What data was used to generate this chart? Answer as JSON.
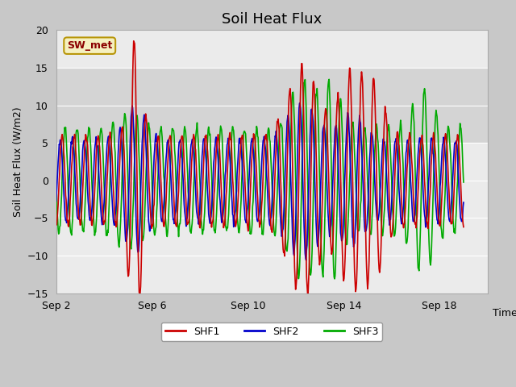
{
  "title": "Soil Heat Flux",
  "ylabel": "Soil Heat Flux (W/m2)",
  "xlabel": "Time",
  "xlim_days": [
    2,
    20
  ],
  "ylim": [
    -15,
    20
  ],
  "yticks": [
    -15,
    -10,
    -5,
    0,
    5,
    10,
    15,
    20
  ],
  "xtick_labels": [
    "Sep 2",
    "Sep 6",
    "Sep 10",
    "Sep 14",
    "Sep 18"
  ],
  "xtick_positions": [
    2,
    6,
    10,
    14,
    18
  ],
  "shaded_band_color": "#e0e0e0",
  "plot_bg_color": "#ebebeb",
  "fig_bg_color": "#c8c8c8",
  "legend_label": "SW_met",
  "legend_box_facecolor": "#f5f0c0",
  "legend_box_edgecolor": "#b8960a",
  "legend_text_color": "#8b0000",
  "series_colors": [
    "#cc0000",
    "#0000cc",
    "#00aa00"
  ],
  "series_labels": [
    "SHF1",
    "SHF2",
    "SHF3"
  ],
  "line_width": 1.2,
  "title_fontsize": 13,
  "axis_fontsize": 9,
  "tick_fontsize": 9
}
